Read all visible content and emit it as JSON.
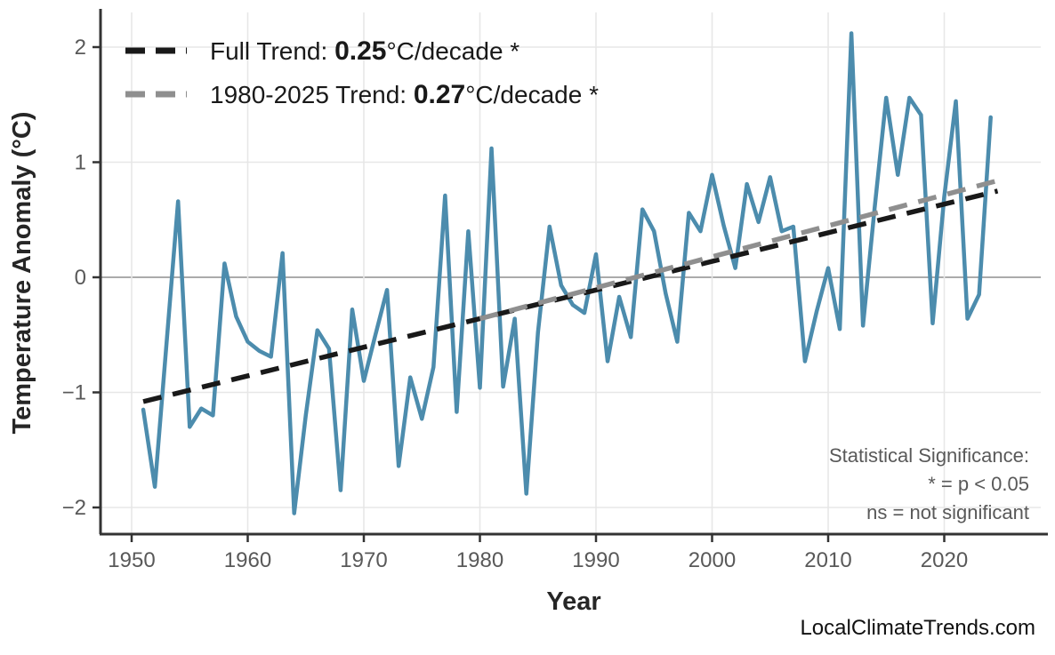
{
  "chart": {
    "watermark": "LocalClimateTrends.com",
    "x_axis": {
      "title": "Year",
      "ticks": [
        {
          "label": "1950",
          "value": 1950
        },
        {
          "label": "1960",
          "value": 1960
        },
        {
          "label": "1970",
          "value": 1970
        },
        {
          "label": "1980",
          "value": 1980
        },
        {
          "label": "1990",
          "value": 1990
        },
        {
          "label": "2000",
          "value": 2000
        },
        {
          "label": "2010",
          "value": 2010
        },
        {
          "label": "2020",
          "value": 2020
        }
      ]
    },
    "y_axis": {
      "title": "Temperature Anomaly (°C)",
      "ticks": [
        {
          "label": "−2",
          "value": -2
        },
        {
          "label": "−1",
          "value": -1
        },
        {
          "label": "0",
          "value": 0
        },
        {
          "label": "1",
          "value": 1
        },
        {
          "label": "2",
          "value": 2
        }
      ]
    },
    "legend": [
      {
        "prefix": "Full Trend: ",
        "value": "0.25",
        "suffix": "°C/decade *",
        "color": "#191919"
      },
      {
        "prefix": "1980-2025 Trend: ",
        "value": "0.27",
        "suffix": "°C/decade *",
        "color": "#8f8f8f"
      }
    ],
    "annotation": {
      "lines": [
        "Statistical Significance:",
        "* = p < 0.05",
        "ns = not significant"
      ]
    },
    "colors": {
      "series": "#4c8cad",
      "full_trend": "#191919",
      "recent_trend": "#8f8f8f",
      "grid": "#e7e7e7",
      "zero_line": "#ababab",
      "axis": "#333333"
    }
  },
  "chart_data": {
    "type": "line",
    "title": "",
    "xlabel": "Year",
    "ylabel": "Temperature Anomaly (°C)",
    "xlim": [
      1947,
      2028
    ],
    "ylim": [
      -2.3,
      2.3
    ],
    "grid": "major-only",
    "legend_position": "top-left-inside",
    "x": [
      1951,
      1952,
      1953,
      1954,
      1955,
      1956,
      1957,
      1958,
      1959,
      1960,
      1961,
      1962,
      1963,
      1964,
      1965,
      1966,
      1967,
      1968,
      1969,
      1970,
      1971,
      1972,
      1973,
      1974,
      1975,
      1976,
      1977,
      1978,
      1979,
      1980,
      1981,
      1982,
      1983,
      1984,
      1985,
      1986,
      1987,
      1988,
      1989,
      1990,
      1991,
      1992,
      1993,
      1994,
      1995,
      1996,
      1997,
      1998,
      1999,
      2000,
      2001,
      2002,
      2003,
      2004,
      2005,
      2006,
      2007,
      2008,
      2009,
      2010,
      2011,
      2012,
      2013,
      2014,
      2015,
      2016,
      2017,
      2018,
      2019,
      2020,
      2021,
      2022,
      2023,
      2024
    ],
    "series": [
      {
        "name": "annual-temperature-anomaly",
        "style": "solid",
        "color": "#4c8cad",
        "values": [
          -1.15,
          -1.82,
          -0.58,
          0.66,
          -1.3,
          -1.14,
          -1.2,
          0.12,
          -0.34,
          -0.56,
          -0.64,
          -0.69,
          0.21,
          -2.05,
          -1.2,
          -0.46,
          -0.62,
          -1.85,
          -0.28,
          -0.9,
          -0.5,
          -0.11,
          -1.64,
          -0.87,
          -1.23,
          -0.78,
          0.71,
          -1.17,
          0.4,
          -0.96,
          1.12,
          -0.95,
          -0.36,
          -1.88,
          -0.48,
          0.44,
          -0.07,
          -0.24,
          -0.31,
          0.2,
          -0.73,
          -0.17,
          -0.52,
          0.59,
          0.4,
          -0.14,
          -0.56,
          0.56,
          0.4,
          0.89,
          0.45,
          0.08,
          0.81,
          0.48,
          0.87,
          0.4,
          0.44,
          -0.73,
          -0.3,
          0.08,
          -0.45,
          2.12,
          -0.42,
          0.6,
          1.56,
          0.89,
          1.56,
          1.41,
          -0.4,
          0.7,
          1.53,
          -0.36,
          -0.15,
          1.39
        ]
      },
      {
        "name": "full-trend",
        "label": "Full Trend: 0.25°C/decade *",
        "style": "dashed",
        "color": "#191919",
        "slope_per_decade": 0.25,
        "x_start": 1951,
        "x_end": 2024.6,
        "y_start": -1.08,
        "y_end": 0.75
      },
      {
        "name": "trend-1980-2025",
        "label": "1980-2025 Trend: 0.27°C/decade *",
        "style": "dashed",
        "color": "#8f8f8f",
        "slope_per_decade": 0.27,
        "x_start": 1980,
        "x_end": 2024.6,
        "y_start": -0.36,
        "y_end": 0.84
      }
    ]
  }
}
